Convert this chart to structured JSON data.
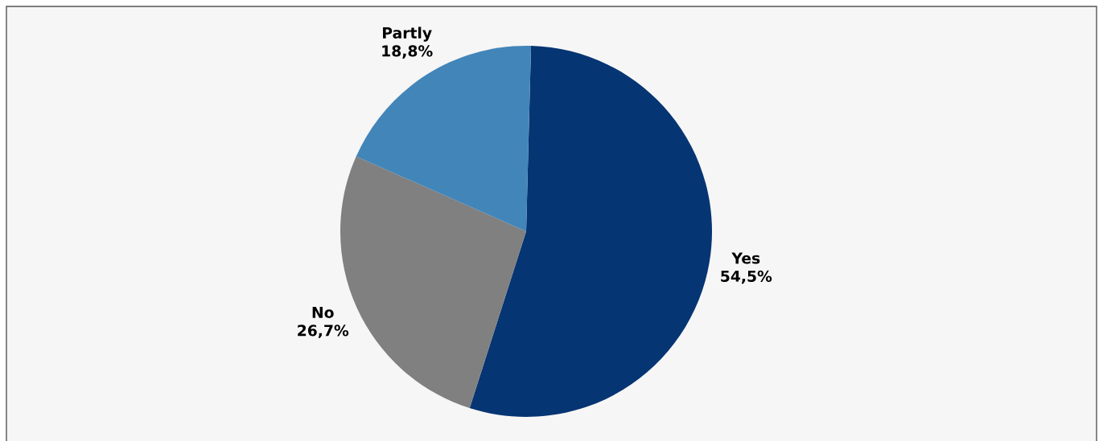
{
  "chart_data": {
    "type": "pie",
    "categories": [
      "Yes",
      "No",
      "Partly"
    ],
    "values": [
      54.5,
      26.7,
      18.8
    ],
    "value_labels": [
      "54,5%",
      "26,7%",
      "18,8%"
    ],
    "colors": [
      "#063573",
      "#808080",
      "#4285b9"
    ],
    "legend": false
  }
}
